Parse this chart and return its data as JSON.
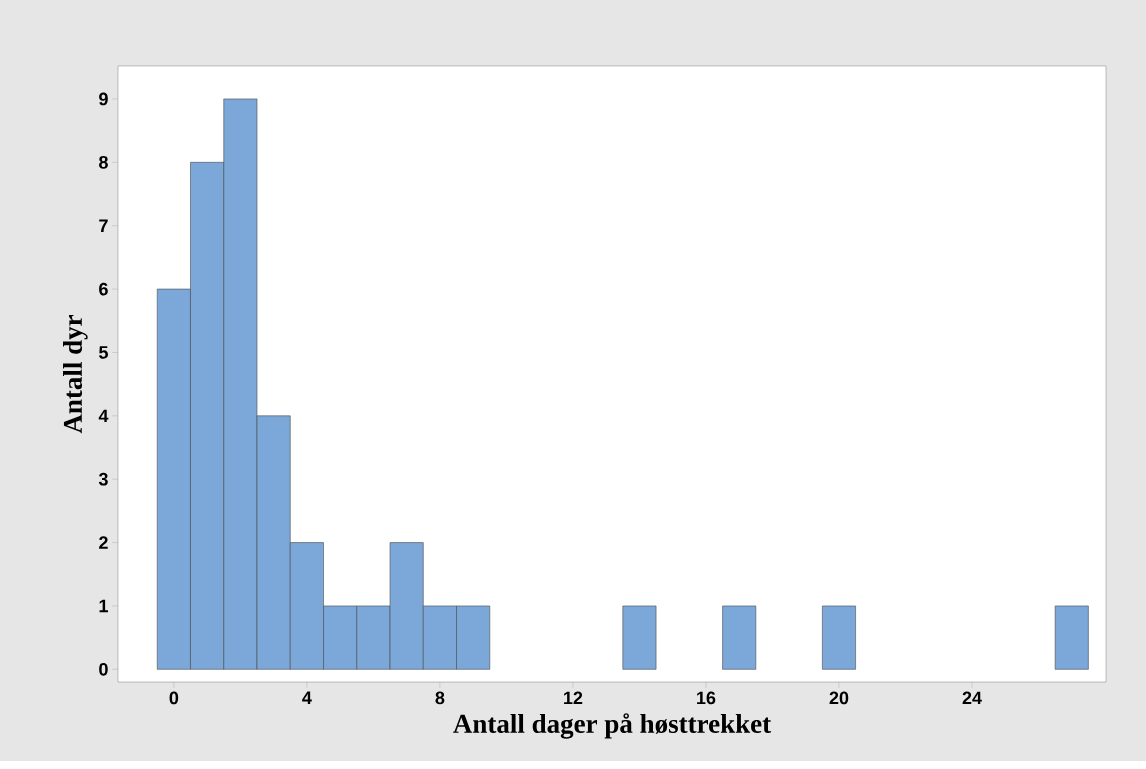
{
  "chart_data": {
    "type": "histogram",
    "xlabel": "Antall dager på høsttrekket",
    "ylabel": "Antall dyr",
    "bins": [
      -0.5,
      0.5,
      1.5,
      2.5,
      3.5,
      4.5,
      5.5,
      6.5,
      7.5,
      8.5,
      9.5,
      10.5,
      11.5,
      12.5,
      13.5,
      14.5,
      15.5,
      16.5,
      17.5,
      18.5,
      19.5,
      20.5,
      21.5,
      22.5,
      23.5,
      24.5,
      25.5,
      26.5,
      27.5
    ],
    "values": [
      6,
      8,
      9,
      4,
      2,
      1,
      1,
      2,
      1,
      1,
      0,
      0,
      0,
      0,
      1,
      0,
      0,
      1,
      0,
      0,
      1,
      0,
      0,
      0,
      0,
      0,
      0,
      1
    ],
    "color": "#7ba7d9",
    "xlim": [
      -1.68,
      28.03
    ],
    "ylim": [
      -0.2,
      9.52
    ],
    "xticks": [
      0,
      4,
      8,
      12,
      16,
      20,
      24
    ],
    "yticks": [
      0,
      1,
      2,
      3,
      4,
      5,
      6,
      7,
      8,
      9
    ],
    "grid": false
  }
}
